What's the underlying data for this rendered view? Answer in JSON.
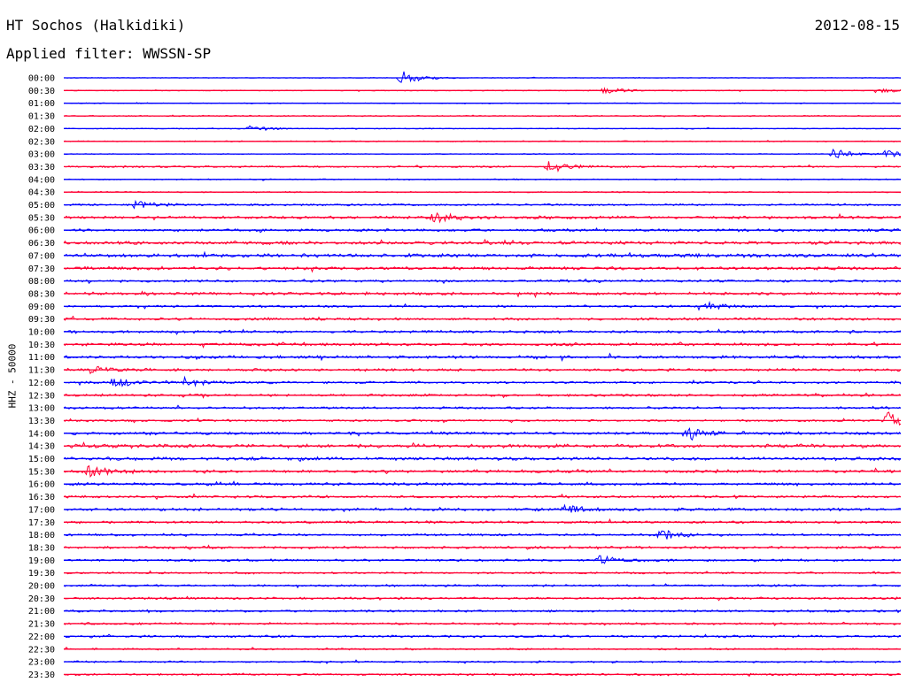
{
  "header": {
    "station": "HT Sochos (Halkidiki)",
    "date": "2012-08-15",
    "filter": "Applied filter: WWSSN-SP"
  },
  "chart_data": {
    "type": "line",
    "ylabel": "HHZ - 50000",
    "tick_labels": [
      "00:00",
      "00:30",
      "01:00",
      "01:30",
      "02:00",
      "02:30",
      "03:00",
      "03:30",
      "04:00",
      "04:30",
      "05:00",
      "05:30",
      "06:00",
      "06:30",
      "07:00",
      "07:30",
      "08:00",
      "08:30",
      "09:00",
      "09:30",
      "10:00",
      "10:30",
      "11:00",
      "11:30",
      "12:00",
      "12:30",
      "13:00",
      "13:30",
      "14:00",
      "14:30",
      "15:00",
      "15:30",
      "16:00",
      "16:30",
      "17:00",
      "17:30",
      "18:00",
      "18:30",
      "19:00",
      "19:30",
      "20:00",
      "20:30",
      "21:00",
      "21:30",
      "22:00",
      "22:30",
      "23:00",
      "23:30"
    ],
    "trace_colors": [
      "#0000ff",
      "#ff0033"
    ],
    "x_range_minutes": [
      0,
      30
    ],
    "noise_level": [
      0.3,
      0.4,
      0.4,
      0.5,
      0.4,
      0.5,
      0.4,
      0.8,
      0.5,
      0.5,
      0.9,
      1.3,
      1.2,
      1.5,
      1.6,
      1.4,
      1.1,
      1.3,
      1.0,
      1.1,
      1.2,
      1.3,
      1.3,
      1.2,
      1.0,
      1.1,
      1.0,
      0.9,
      1.3,
      1.6,
      1.4,
      1.3,
      1.2,
      1.1,
      1.3,
      1.1,
      1.0,
      1.1,
      1.0,
      0.9,
      0.9,
      1.0,
      1.0,
      0.9,
      1.0,
      0.8,
      0.8,
      0.9
    ],
    "events": [
      {
        "row": 0,
        "t": 12.1,
        "amp": 9
      },
      {
        "row": 1,
        "t": 19.4,
        "amp": 4
      },
      {
        "row": 1,
        "t": 29.2,
        "amp": 4
      },
      {
        "row": 4,
        "t": 6.7,
        "amp": 4
      },
      {
        "row": 6,
        "t": 27.6,
        "amp": 6
      },
      {
        "row": 6,
        "t": 29.5,
        "amp": 5
      },
      {
        "row": 7,
        "t": 17.4,
        "amp": 7
      },
      {
        "row": 10,
        "t": 2.6,
        "amp": 5
      },
      {
        "row": 11,
        "t": 13.3,
        "amp": 6
      },
      {
        "row": 18,
        "t": 22.8,
        "amp": 7
      },
      {
        "row": 23,
        "t": 0.9,
        "amp": 4
      },
      {
        "row": 24,
        "t": 1.8,
        "amp": 7
      },
      {
        "row": 24,
        "t": 4.3,
        "amp": 6
      },
      {
        "row": 27,
        "t": 29.5,
        "amp": 10
      },
      {
        "row": 28,
        "t": 22.4,
        "amp": 8
      },
      {
        "row": 31,
        "t": 0.9,
        "amp": 6
      },
      {
        "row": 34,
        "t": 18.0,
        "amp": 5
      },
      {
        "row": 36,
        "t": 21.4,
        "amp": 6
      },
      {
        "row": 38,
        "t": 19.2,
        "amp": 5
      }
    ]
  }
}
